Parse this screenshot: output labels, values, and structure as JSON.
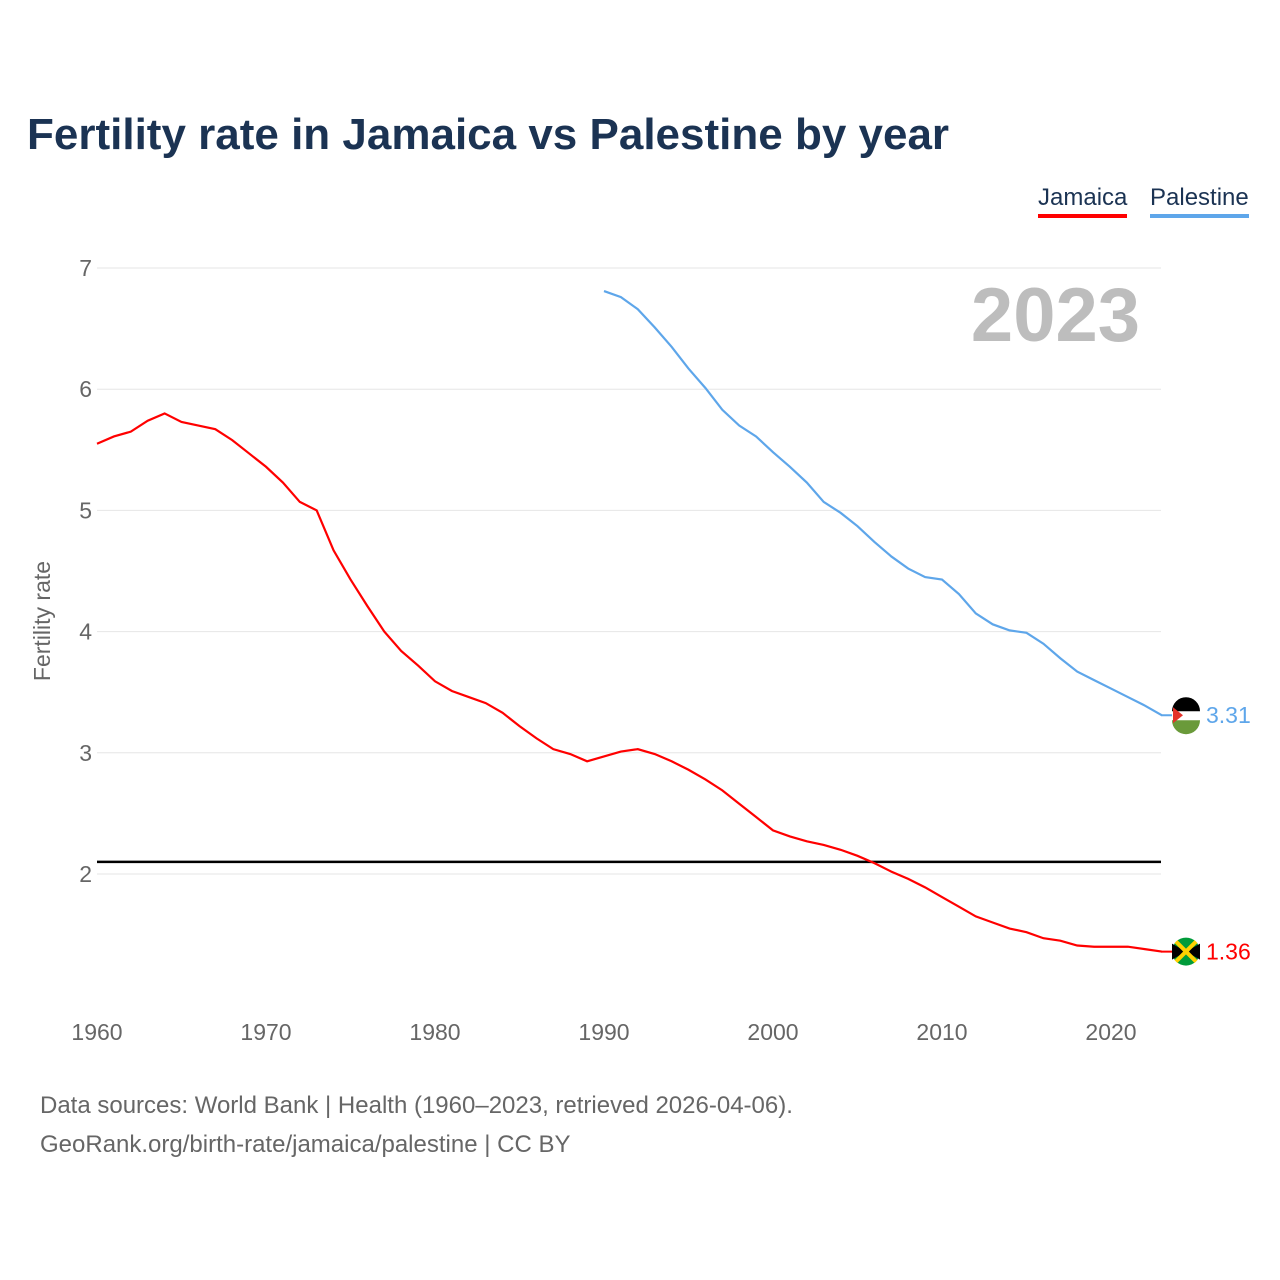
{
  "chart_data": {
    "type": "line",
    "title": "Fertility rate in Jamaica vs Palestine by year",
    "xlabel": "",
    "ylabel": "Fertility rate",
    "xlim": [
      1960,
      2023
    ],
    "ylim": [
      1.1,
      7
    ],
    "xticks": [
      "1960",
      "1970",
      "1980",
      "1990",
      "2000",
      "2010",
      "2020"
    ],
    "yticks": [
      "2",
      "3",
      "4",
      "5",
      "6",
      "7"
    ],
    "year_label": "2023",
    "reference_line": 2.1,
    "legend_position": "top-right",
    "series": [
      {
        "name": "Jamaica",
        "color": "#ff0000",
        "end_label": "1.36",
        "start_year": 1960,
        "values": [
          5.55,
          5.61,
          5.65,
          5.74,
          5.8,
          5.73,
          5.7,
          5.67,
          5.58,
          5.47,
          5.36,
          5.23,
          5.07,
          5.0,
          4.67,
          4.43,
          4.21,
          4.0,
          3.84,
          3.72,
          3.59,
          3.51,
          3.46,
          3.41,
          3.33,
          3.22,
          3.12,
          3.03,
          2.99,
          2.93,
          2.97,
          3.01,
          3.03,
          2.99,
          2.93,
          2.86,
          2.78,
          2.69,
          2.58,
          2.47,
          2.36,
          2.31,
          2.27,
          2.24,
          2.2,
          2.15,
          2.09,
          2.02,
          1.96,
          1.89,
          1.81,
          1.73,
          1.65,
          1.6,
          1.55,
          1.52,
          1.47,
          1.45,
          1.41,
          1.4,
          1.4,
          1.4,
          1.38,
          1.36
        ]
      },
      {
        "name": "Palestine",
        "color": "#5ea6ea",
        "end_label": "3.31",
        "start_year": 1990,
        "values": [
          6.81,
          6.76,
          6.66,
          6.51,
          6.35,
          6.17,
          6.01,
          5.83,
          5.7,
          5.61,
          5.48,
          5.36,
          5.23,
          5.07,
          4.98,
          4.87,
          4.74,
          4.62,
          4.52,
          4.45,
          4.43,
          4.31,
          4.15,
          4.06,
          4.01,
          3.99,
          3.9,
          3.78,
          3.67,
          3.6,
          3.53,
          3.46,
          3.39,
          3.31
        ]
      }
    ]
  },
  "footer": {
    "line1": "Data sources: World Bank | Health (1960–2023, retrieved 2026-04-06).",
    "line2": "GeoRank.org/birth-rate/jamaica/palestine | CC BY"
  }
}
